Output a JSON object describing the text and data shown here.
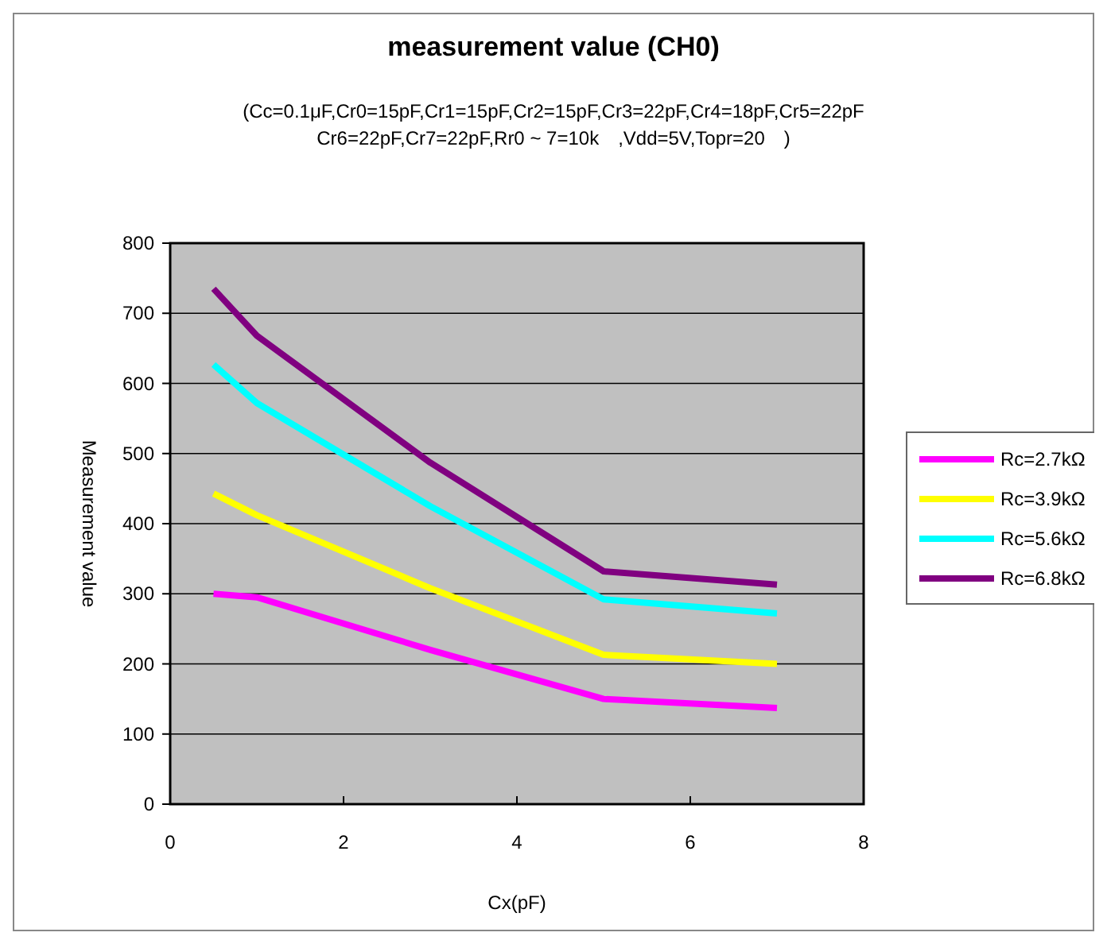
{
  "chart_data": {
    "type": "line",
    "title": "measurement value (CH0)",
    "subtitle": "(Cc=0.1μF,Cr0=15pF,Cr1=15pF,Cr2=15pF,Cr3=22pF,Cr4=18pF,Cr5=22pF\nCr6=22pF,Cr7=22pF,Rr0 ~ 7=10k　,Vdd=5V,Topr=20　)",
    "xlabel": "Cx(pF)",
    "ylabel": "Measurement value",
    "x": [
      0.5,
      1,
      3,
      5,
      7
    ],
    "series": [
      {
        "name": "Rc=2.7kΩ",
        "color": "#ff00ff",
        "values": [
          300,
          295,
          220,
          150,
          137
        ]
      },
      {
        "name": "Rc=3.9kΩ",
        "color": "#ffff00",
        "values": [
          443,
          412,
          308,
          213,
          200
        ]
      },
      {
        "name": "Rc=5.6kΩ",
        "color": "#00ffff",
        "values": [
          627,
          572,
          425,
          292,
          272
        ]
      },
      {
        "name": "Rc=6.8kΩ",
        "color": "#800080",
        "values": [
          735,
          668,
          487,
          332,
          313
        ]
      }
    ],
    "xlim": [
      0,
      8
    ],
    "xticks": [
      0,
      2,
      4,
      6,
      8
    ],
    "ylim": [
      0,
      800
    ],
    "yticks": [
      0,
      100,
      200,
      300,
      400,
      500,
      600,
      700,
      800
    ],
    "grid": "y",
    "legend": "right",
    "marker": "none",
    "line_style": "solid"
  }
}
